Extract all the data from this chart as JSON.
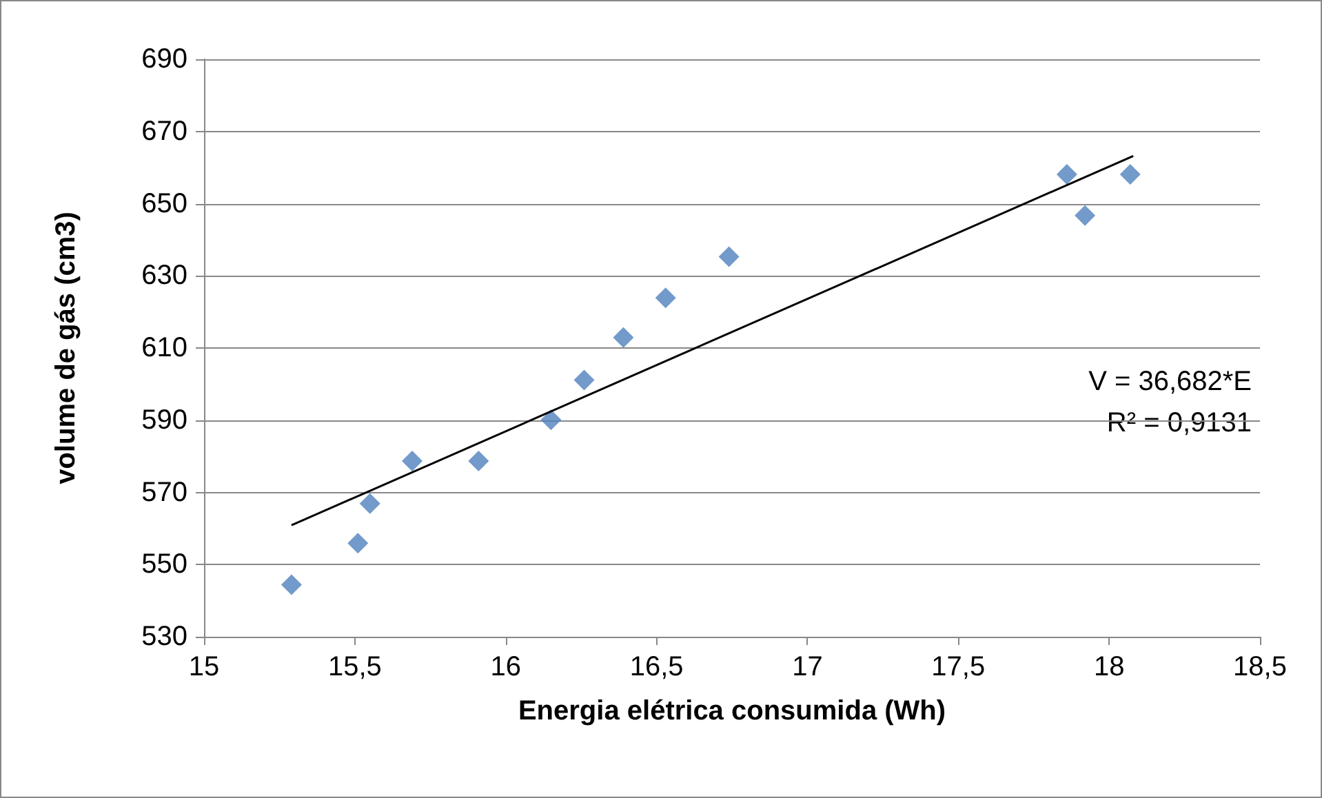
{
  "chart_data": {
    "type": "scatter",
    "xlabel": "Energia elétrica consumida (Wh)",
    "ylabel": "volume de gás (cm3)",
    "xlim": [
      15,
      18.5
    ],
    "xticks": [
      15,
      {
        "value": 15.5,
        "label": "15,5"
      },
      16,
      {
        "value": 16.5,
        "label": "16,5"
      },
      17,
      {
        "value": 17.5,
        "label": "17,5"
      },
      18,
      {
        "value": 18.5,
        "label": "18,5"
      }
    ],
    "ylim": [
      530,
      690
    ],
    "yticks": [
      530,
      550,
      570,
      590,
      610,
      630,
      650,
      670,
      690
    ],
    "grid": "y",
    "marker": "diamond",
    "annotations": [
      "V = 36,682*E",
      "R² = 0,9131"
    ],
    "series": [
      {
        "color": "#4f81bd",
        "x": [
          15.29,
          15.51,
          15.55,
          15.69,
          15.91,
          16.15,
          16.26,
          16.39,
          16.53,
          16.74,
          17.86,
          17.92,
          18.07
        ],
        "values": [
          544.4,
          555.9,
          566.9,
          578.7,
          578.7,
          590.1,
          601.1,
          612.9,
          623.9,
          635.3,
          658.1,
          646.7,
          658.1
        ]
      },
      {
        "type": "line",
        "color": "#000000",
        "marker": "none",
        "x": [
          15.29,
          18.08
        ],
        "values": [
          560.9,
          663.2
        ]
      }
    ]
  }
}
